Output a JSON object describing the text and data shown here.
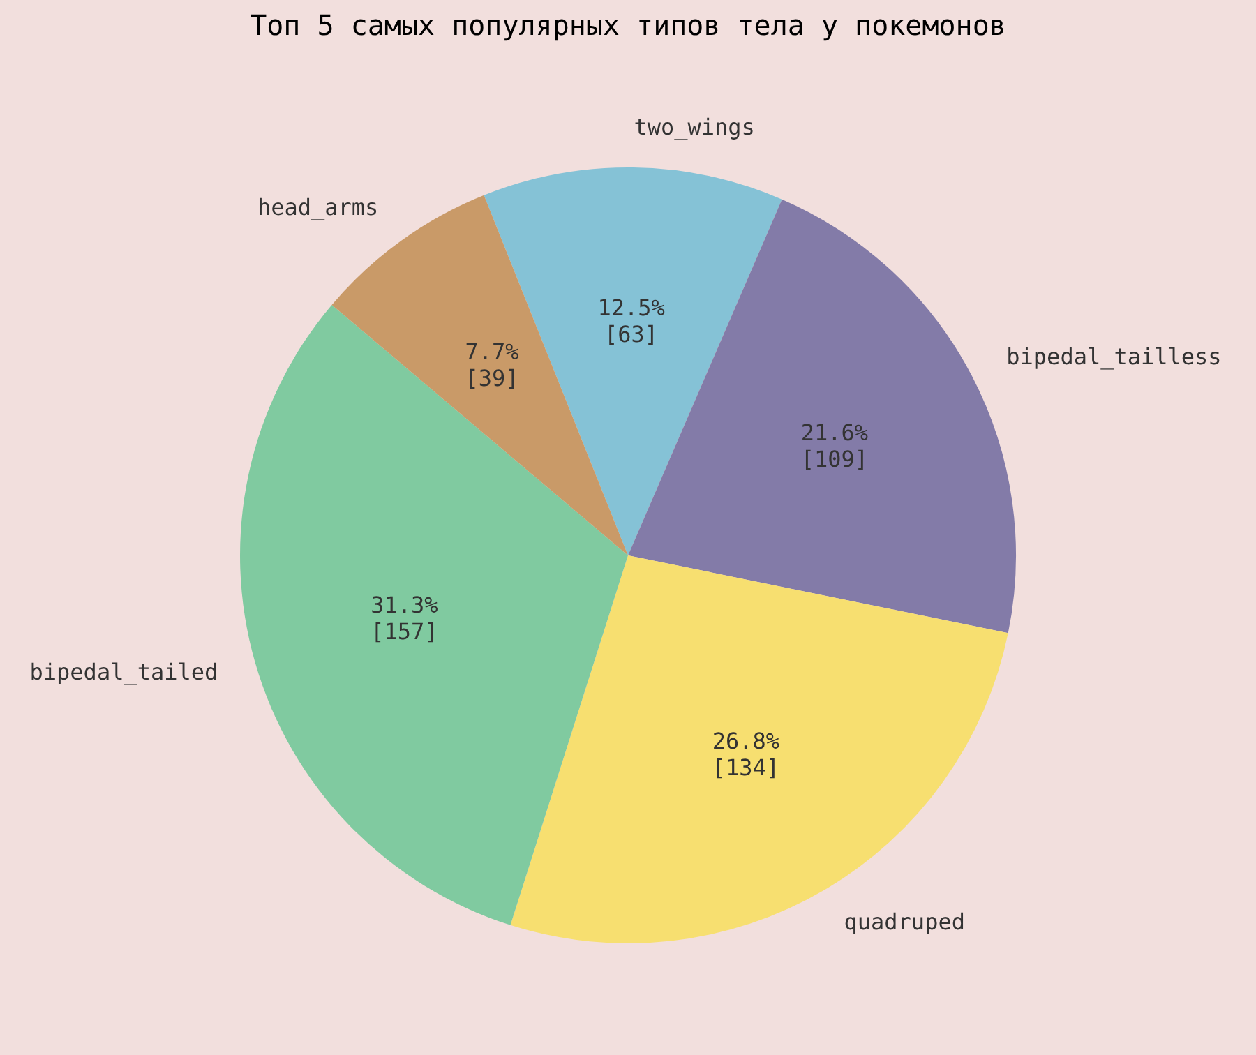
{
  "chart_data": {
    "type": "pie",
    "title": "Топ 5 самых популярных типов тела у покемонов",
    "categories": [
      "two_wings",
      "bipedal_tailless",
      "quadruped",
      "bipedal_tailed",
      "head_arms"
    ],
    "values": [
      63,
      109,
      134,
      157,
      39
    ],
    "value_labels": [
      "12.5%\n[63]",
      "21.6%\n[109]",
      "26.8%\n[134]",
      "31.3%\n[157]",
      "7.7%\n[39]"
    ],
    "colors": [
      "#85c2d6",
      "#837ba8",
      "#f7df70",
      "#80caa0",
      "#c99a68"
    ],
    "legend": false
  }
}
